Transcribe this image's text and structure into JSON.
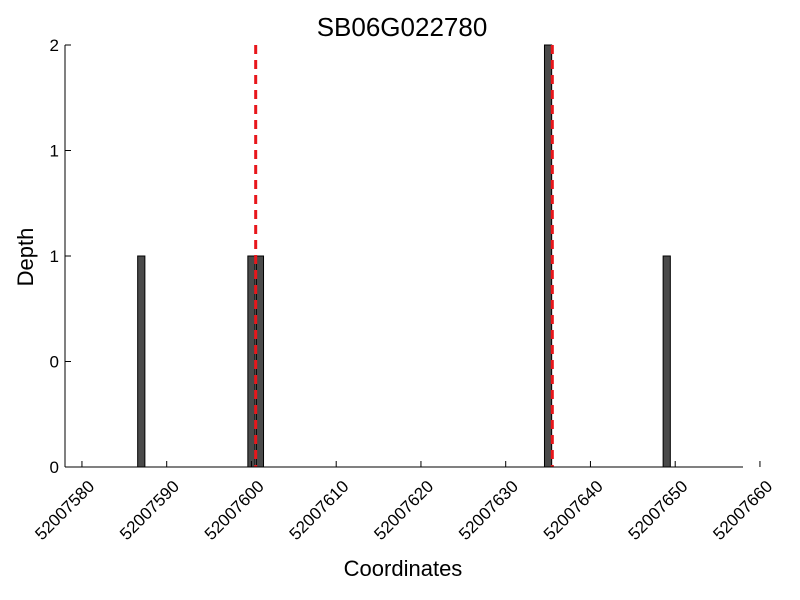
{
  "chart_data": {
    "type": "bar",
    "title": "SB06G022780",
    "xlabel": "Coordinates",
    "ylabel": "Depth",
    "xlim": [
      52007578,
      52007658
    ],
    "ylim": [
      0,
      2
    ],
    "x_ticks": [
      52007580,
      52007590,
      52007600,
      52007610,
      52007620,
      52007630,
      52007640,
      52007650,
      52007660
    ],
    "y_tick_labels": [
      "0",
      "0",
      "1",
      "1",
      "2"
    ],
    "y_tick_values": [
      0,
      0.5,
      1,
      1.5,
      2
    ],
    "series": [
      {
        "x": [
          52007587,
          52007600,
          52007601,
          52007635,
          52007649
        ],
        "values": [
          1,
          1,
          1,
          2,
          1
        ]
      }
    ],
    "markers": [
      52007600.5,
      52007635.5
    ],
    "bar_color": "#4a4a4a",
    "marker_color": "#e8161b",
    "grid": false
  }
}
